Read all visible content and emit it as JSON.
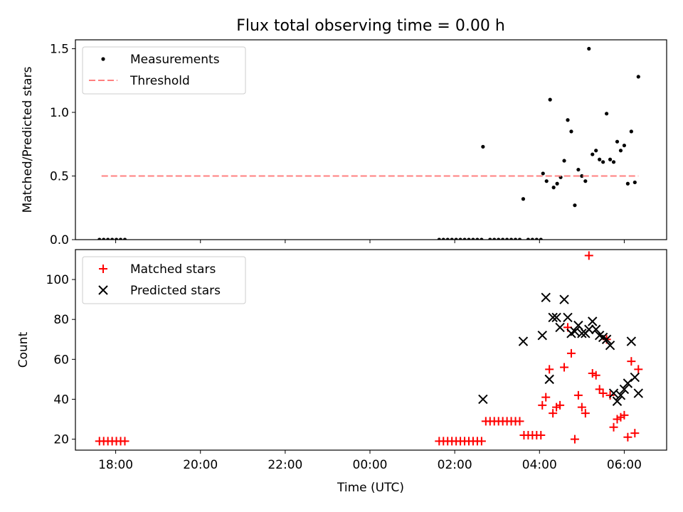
{
  "figure": {
    "title": "Flux total observing time = 0.00 h",
    "xlabel": "Time (UTC)"
  },
  "chart_data": [
    {
      "type": "scatter",
      "ylabel": "Matched/Predicted stars",
      "ylim": [
        0,
        1.57
      ],
      "yticks": [
        0.0,
        0.5,
        1.0,
        1.5
      ],
      "xlim": [
        "17:03",
        "07:00"
      ],
      "xticks": [
        "18:00",
        "20:00",
        "22:00",
        "00:00",
        "02:00",
        "04:00",
        "06:00"
      ],
      "legend": "upper-left",
      "grid": false,
      "series": [
        {
          "name": "Measurements",
          "kind": "points",
          "marker": "dot",
          "color": "#000000",
          "points": [
            [
              "17:37",
              0
            ],
            [
              "17:43",
              0
            ],
            [
              "17:49",
              0
            ],
            [
              "17:55",
              0
            ],
            [
              "18:01",
              0
            ],
            [
              "18:07",
              0
            ],
            [
              "18:13",
              0
            ],
            [
              "01:38",
              0
            ],
            [
              "01:44",
              0
            ],
            [
              "01:50",
              0
            ],
            [
              "01:56",
              0
            ],
            [
              "02:02",
              0
            ],
            [
              "02:08",
              0
            ],
            [
              "02:14",
              0
            ],
            [
              "02:20",
              0
            ],
            [
              "02:26",
              0
            ],
            [
              "02:32",
              0
            ],
            [
              "02:38",
              0
            ],
            [
              "02:40",
              0.73
            ],
            [
              "02:50",
              0
            ],
            [
              "02:56",
              0
            ],
            [
              "03:02",
              0
            ],
            [
              "03:08",
              0
            ],
            [
              "03:14",
              0
            ],
            [
              "03:20",
              0
            ],
            [
              "03:26",
              0
            ],
            [
              "03:32",
              0
            ],
            [
              "03:37",
              0.32
            ],
            [
              "03:44",
              0
            ],
            [
              "03:50",
              0
            ],
            [
              "03:56",
              0
            ],
            [
              "04:02",
              0
            ],
            [
              "04:05",
              0.52
            ],
            [
              "04:10",
              0.46
            ],
            [
              "04:15",
              1.1
            ],
            [
              "04:20",
              0.41
            ],
            [
              "04:25",
              0.44
            ],
            [
              "04:30",
              0.49
            ],
            [
              "04:35",
              0.62
            ],
            [
              "04:40",
              0.94
            ],
            [
              "04:45",
              0.85
            ],
            [
              "04:50",
              0.27
            ],
            [
              "04:55",
              0.55
            ],
            [
              "05:00",
              0.5
            ],
            [
              "05:05",
              0.46
            ],
            [
              "05:10",
              1.5
            ],
            [
              "05:15",
              0.67
            ],
            [
              "05:20",
              0.7
            ],
            [
              "05:25",
              0.63
            ],
            [
              "05:30",
              0.61
            ],
            [
              "05:35",
              0.99
            ],
            [
              "05:40",
              0.63
            ],
            [
              "05:45",
              0.61
            ],
            [
              "05:50",
              0.77
            ],
            [
              "05:55",
              0.7
            ],
            [
              "06:00",
              0.74
            ],
            [
              "06:05",
              0.44
            ],
            [
              "06:10",
              0.85
            ],
            [
              "06:15",
              0.45
            ],
            [
              "06:20",
              1.28
            ]
          ]
        },
        {
          "name": "Threshold",
          "kind": "line",
          "dashed": true,
          "color": "#ff7f7f",
          "points": [
            [
              "17:40",
              0.5
            ],
            [
              "06:20",
              0.5
            ]
          ]
        }
      ]
    },
    {
      "type": "scatter",
      "ylabel": "Count",
      "ylim": [
        14.5,
        115
      ],
      "yticks": [
        20,
        40,
        60,
        80,
        100
      ],
      "xlim": [
        "17:03",
        "07:00"
      ],
      "xticks": [
        "18:00",
        "20:00",
        "22:00",
        "00:00",
        "02:00",
        "04:00",
        "06:00"
      ],
      "legend": "upper-left",
      "grid": false,
      "series": [
        {
          "name": "Matched stars",
          "kind": "points",
          "marker": "plus",
          "color": "#ff0000",
          "points": [
            [
              "17:37",
              19
            ],
            [
              "17:43",
              19
            ],
            [
              "17:49",
              19
            ],
            [
              "17:55",
              19
            ],
            [
              "18:01",
              19
            ],
            [
              "18:07",
              19
            ],
            [
              "18:13",
              19
            ],
            [
              "01:38",
              19
            ],
            [
              "01:44",
              19
            ],
            [
              "01:50",
              19
            ],
            [
              "01:56",
              19
            ],
            [
              "02:02",
              19
            ],
            [
              "02:08",
              19
            ],
            [
              "02:14",
              19
            ],
            [
              "02:20",
              19
            ],
            [
              "02:26",
              19
            ],
            [
              "02:32",
              19
            ],
            [
              "02:38",
              19
            ],
            [
              "02:44",
              29
            ],
            [
              "02:50",
              29
            ],
            [
              "02:56",
              29
            ],
            [
              "03:02",
              29
            ],
            [
              "03:08",
              29
            ],
            [
              "03:14",
              29
            ],
            [
              "03:20",
              29
            ],
            [
              "03:26",
              29
            ],
            [
              "03:32",
              29
            ],
            [
              "03:38",
              22
            ],
            [
              "03:44",
              22
            ],
            [
              "03:50",
              22
            ],
            [
              "03:56",
              22
            ],
            [
              "04:02",
              22
            ],
            [
              "04:04",
              37
            ],
            [
              "04:09",
              41
            ],
            [
              "04:14",
              55
            ],
            [
              "04:19",
              33
            ],
            [
              "04:24",
              36
            ],
            [
              "04:29",
              37
            ],
            [
              "04:35",
              56
            ],
            [
              "04:40",
              76
            ],
            [
              "04:45",
              63
            ],
            [
              "04:50",
              20
            ],
            [
              "04:55",
              42
            ],
            [
              "05:00",
              36
            ],
            [
              "05:05",
              33
            ],
            [
              "05:10",
              112
            ],
            [
              "05:15",
              53
            ],
            [
              "05:20",
              52
            ],
            [
              "05:25",
              45
            ],
            [
              "05:30",
              43
            ],
            [
              "05:35",
              70
            ],
            [
              "05:40",
              42
            ],
            [
              "05:45",
              26
            ],
            [
              "05:50",
              30
            ],
            [
              "05:55",
              31
            ],
            [
              "06:00",
              32
            ],
            [
              "06:05",
              21
            ],
            [
              "06:10",
              59
            ],
            [
              "06:15",
              23
            ],
            [
              "06:20",
              55
            ]
          ]
        },
        {
          "name": "Predicted stars",
          "kind": "points",
          "marker": "x",
          "color": "#000000",
          "points": [
            [
              "02:40",
              40
            ],
            [
              "03:37",
              69
            ],
            [
              "04:04",
              72
            ],
            [
              "04:09",
              91
            ],
            [
              "04:14",
              50
            ],
            [
              "04:19",
              81
            ],
            [
              "04:24",
              81
            ],
            [
              "04:29",
              76
            ],
            [
              "04:35",
              90
            ],
            [
              "04:40",
              81
            ],
            [
              "04:45",
              73
            ],
            [
              "04:50",
              74
            ],
            [
              "04:55",
              77
            ],
            [
              "05:00",
              73
            ],
            [
              "05:05",
              73
            ],
            [
              "05:10",
              75
            ],
            [
              "05:15",
              79
            ],
            [
              "05:20",
              75
            ],
            [
              "05:25",
              72
            ],
            [
              "05:30",
              71
            ],
            [
              "05:35",
              70
            ],
            [
              "05:40",
              67
            ],
            [
              "05:45",
              43
            ],
            [
              "05:50",
              39
            ],
            [
              "05:55",
              42
            ],
            [
              "06:00",
              45
            ],
            [
              "06:05",
              48
            ],
            [
              "06:10",
              69
            ],
            [
              "06:15",
              51
            ],
            [
              "06:20",
              43
            ]
          ]
        }
      ]
    }
  ]
}
